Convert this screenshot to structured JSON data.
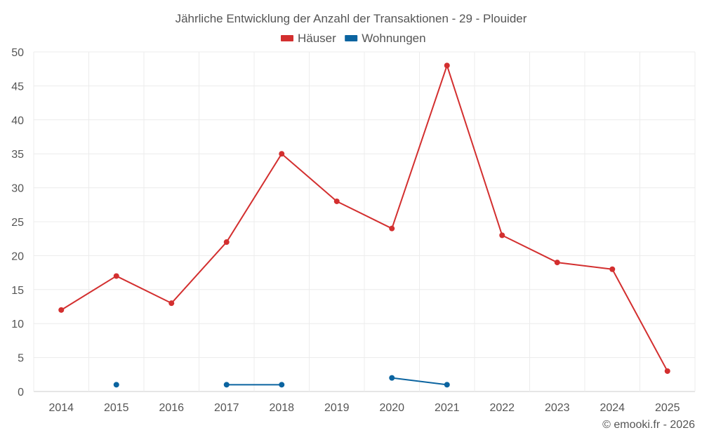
{
  "chart_data": {
    "type": "line",
    "title": "Jährliche Entwicklung der Anzahl der Transaktionen - 29 - Plouider",
    "xlabel": "",
    "ylabel": "",
    "categories": [
      "2014",
      "2015",
      "2016",
      "2017",
      "2018",
      "2019",
      "2020",
      "2021",
      "2022",
      "2023",
      "2024",
      "2025"
    ],
    "ylim": [
      0,
      50
    ],
    "yticks": [
      0,
      5,
      10,
      15,
      20,
      25,
      30,
      35,
      40,
      45,
      50
    ],
    "grid": true,
    "legend_position": "top-center",
    "series": [
      {
        "name": "Häuser",
        "color": "#d32f2f",
        "values": [
          12,
          17,
          13,
          22,
          35,
          28,
          24,
          48,
          23,
          19,
          18,
          3
        ]
      },
      {
        "name": "Wohnungen",
        "color": "#0b64a0",
        "values": [
          null,
          1,
          null,
          1,
          1,
          null,
          2,
          1,
          null,
          null,
          null,
          null
        ]
      }
    ],
    "credit": "© emooki.fr - 2026"
  }
}
